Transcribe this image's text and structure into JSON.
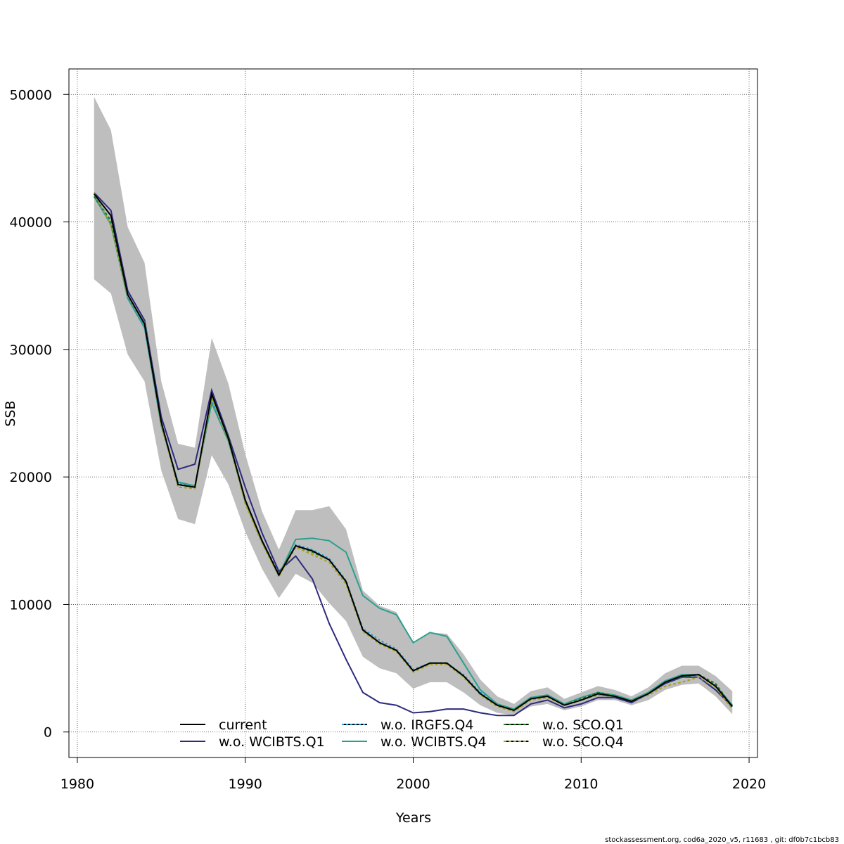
{
  "chart_data": {
    "type": "line",
    "xlabel": "Years",
    "ylabel": "SSB",
    "xlim": [
      1979.5,
      2020.5
    ],
    "ylim": [
      -2000,
      52000
    ],
    "x_ticks": [
      "1980",
      "1990",
      "2000",
      "2010",
      "2020"
    ],
    "y_ticks": [
      "0",
      "10000",
      "20000",
      "30000",
      "40000",
      "50000"
    ],
    "x_tick_values": [
      1980,
      1990,
      2000,
      2010,
      2020
    ],
    "y_tick_values": [
      0,
      10000,
      20000,
      30000,
      40000,
      50000
    ],
    "grid": true,
    "legend_position": "bottom-center",
    "x": [
      1981,
      1982,
      1983,
      1984,
      1985,
      1986,
      1987,
      1988,
      1989,
      1990,
      1991,
      1992,
      1993,
      1994,
      1995,
      1996,
      1997,
      1998,
      1999,
      2000,
      2001,
      2002,
      2003,
      2004,
      2005,
      2006,
      2007,
      2008,
      2009,
      2010,
      2011,
      2012,
      2013,
      2014,
      2015,
      2016,
      2017,
      2018,
      2019
    ],
    "confidence_band": {
      "color": "#bebebe",
      "upper": [
        49800,
        47200,
        39600,
        36800,
        27500,
        22600,
        22300,
        30900,
        27300,
        21800,
        17300,
        14300,
        17400,
        17400,
        17700,
        15900,
        11100,
        9900,
        9400,
        7000,
        7800,
        7700,
        6100,
        4100,
        2800,
        2200,
        3200,
        3500,
        2600,
        3100,
        3600,
        3300,
        2800,
        3500,
        4600,
        5200,
        5200,
        4400,
        3200
      ],
      "lower": [
        35500,
        34400,
        29600,
        27500,
        20500,
        16700,
        16300,
        21700,
        19400,
        15700,
        12800,
        10500,
        12400,
        11700,
        10100,
        8700,
        5900,
        5000,
        4600,
        3400,
        3900,
        3900,
        3100,
        2100,
        1500,
        1300,
        2000,
        2200,
        1700,
        2000,
        2500,
        2500,
        2100,
        2500,
        3300,
        3700,
        3800,
        2800,
        1400
      ]
    },
    "series": [
      {
        "name": "current",
        "color": "#000000",
        "dash": "",
        "values": [
          42200,
          40500,
          34300,
          32000,
          24300,
          19400,
          19200,
          26500,
          23000,
          18200,
          15000,
          12300,
          14600,
          14200,
          13500,
          11800,
          8000,
          7000,
          6400,
          4800,
          5400,
          5400,
          4400,
          3000,
          2100,
          1700,
          2600,
          2800,
          2100,
          2500,
          3000,
          2800,
          2400,
          3000,
          3900,
          4400,
          4500,
          3600,
          2000
        ]
      },
      {
        "name": "w.o. WCIBTS.Q1",
        "color": "#2e2a7e",
        "dash": "",
        "values": [
          42300,
          40900,
          34600,
          32300,
          24700,
          20600,
          21000,
          26800,
          23200,
          19200,
          15600,
          12600,
          13800,
          12000,
          8500,
          5700,
          3100,
          2300,
          2100,
          1500,
          1600,
          1800,
          1800,
          1500,
          1300,
          1300,
          2200,
          2500,
          1900,
          2200,
          2700,
          2700,
          2300,
          3000,
          3800,
          4300,
          4300,
          3300,
          2000
        ]
      },
      {
        "name": "w.o. IRGFS.Q4",
        "color": "#1f9bd6",
        "dash": "3 3",
        "values": [
          42000,
          39900,
          34100,
          31900,
          24200,
          19500,
          19200,
          26000,
          22900,
          18100,
          14900,
          12300,
          14700,
          14300,
          13600,
          11900,
          8100,
          7200,
          6500,
          4900,
          5400,
          5400,
          4500,
          3100,
          2200,
          1700,
          2700,
          2800,
          2100,
          2500,
          2900,
          2800,
          2400,
          3000,
          3900,
          4400,
          4500,
          3700,
          2100
        ]
      },
      {
        "name": "w.o. WCIBTS.Q4",
        "color": "#2aa08e",
        "dash": "",
        "values": [
          42000,
          39800,
          34000,
          31700,
          24000,
          19600,
          19300,
          25800,
          22800,
          18100,
          14900,
          12300,
          15100,
          15200,
          15000,
          14100,
          10700,
          9700,
          9200,
          7000,
          7800,
          7500,
          5400,
          3300,
          2200,
          1800,
          2700,
          2900,
          2200,
          2700,
          3100,
          2900,
          2500,
          3100,
          4000,
          4500,
          4500,
          3600,
          2100
        ]
      },
      {
        "name": "w.o. SCO.Q1",
        "color": "#1e7a1e",
        "dash": "4 3",
        "values": [
          42000,
          40100,
          34300,
          32000,
          24300,
          19400,
          19200,
          26400,
          23100,
          18100,
          15000,
          12400,
          14600,
          14100,
          13500,
          11800,
          8000,
          7000,
          6400,
          4800,
          5400,
          5400,
          4400,
          3000,
          2100,
          1700,
          2600,
          2800,
          2100,
          2600,
          3100,
          2800,
          2400,
          3000,
          3900,
          4300,
          4500,
          3800,
          2000
        ]
      },
      {
        "name": "w.o. SCO.Q4",
        "color": "#a5a025",
        "dash": "4 3",
        "values": [
          42300,
          39700,
          34200,
          32100,
          24100,
          19200,
          19100,
          26200,
          22900,
          17900,
          14800,
          12200,
          14500,
          13900,
          13300,
          11600,
          7900,
          6900,
          6300,
          4700,
          5300,
          5300,
          4300,
          2900,
          2000,
          1600,
          2500,
          2700,
          2100,
          2500,
          2900,
          2800,
          2400,
          2900,
          3600,
          3900,
          4300,
          3500,
          1800
        ]
      }
    ]
  },
  "footer": {
    "source_note": "stockassessment.org, cod6a_2020_v5, r11683 , git: df0b7c1bcb83"
  }
}
